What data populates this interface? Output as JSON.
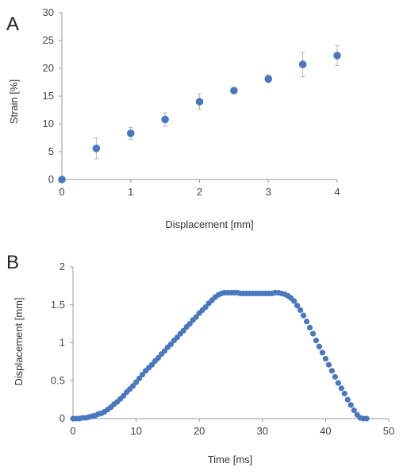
{
  "colors": {
    "marker": "#4a78bf",
    "axis": "#9a9a9a",
    "errorbar": "#b8b8b8",
    "text": "#444444"
  },
  "chart_data": [
    {
      "panel": "A",
      "type": "scatter",
      "xlabel": "Displacement [mm]",
      "ylabel": "Strain [%]",
      "xlim": [
        0,
        4
      ],
      "ylim": [
        0,
        30
      ],
      "xticks": [
        0,
        1,
        2,
        3,
        4
      ],
      "yticks": [
        0,
        5,
        10,
        15,
        20,
        25,
        30
      ],
      "grid": false,
      "legend": "none",
      "points": [
        {
          "x": 0,
          "y": 0,
          "err": 0
        },
        {
          "x": 0.5,
          "y": 5.6,
          "err": 1.9
        },
        {
          "x": 1.0,
          "y": 8.3,
          "err": 1.1
        },
        {
          "x": 1.5,
          "y": 10.8,
          "err": 1.2
        },
        {
          "x": 2.0,
          "y": 14.0,
          "err": 1.4
        },
        {
          "x": 2.5,
          "y": 16.0,
          "err": 0.3
        },
        {
          "x": 3.0,
          "y": 18.1,
          "err": 0.7
        },
        {
          "x": 3.5,
          "y": 20.7,
          "err": 2.2
        },
        {
          "x": 4.0,
          "y": 22.3,
          "err": 1.8
        }
      ]
    },
    {
      "panel": "B",
      "type": "scatter",
      "xlabel": "Time [ms]",
      "ylabel": "Displacement [mm]",
      "xlim": [
        0,
        50
      ],
      "ylim": [
        0,
        2
      ],
      "xticks": [
        0,
        10,
        20,
        30,
        40,
        50
      ],
      "yticks": [
        0,
        0.5,
        1,
        1.5,
        2
      ],
      "grid": false,
      "legend": "none",
      "x": [
        0.0,
        0.5,
        1.0,
        1.5,
        2.0,
        2.5,
        3.0,
        3.5,
        4.0,
        4.5,
        5.0,
        5.5,
        6.0,
        6.5,
        7.0,
        7.5,
        8.0,
        8.5,
        9.0,
        9.5,
        10.0,
        10.5,
        11.0,
        11.5,
        12.0,
        12.5,
        13.0,
        13.5,
        14.0,
        14.5,
        15.0,
        15.5,
        16.0,
        16.5,
        17.0,
        17.5,
        18.0,
        18.5,
        19.0,
        19.5,
        20.0,
        20.5,
        21.0,
        21.5,
        22.0,
        22.5,
        23.0,
        23.5,
        24.0,
        24.5,
        25.0,
        25.5,
        26.0,
        26.5,
        27.0,
        27.5,
        28.0,
        28.5,
        29.0,
        29.5,
        30.0,
        30.5,
        31.0,
        31.5,
        32.0,
        32.5,
        33.0,
        33.5,
        34.0,
        34.5,
        35.0,
        35.5,
        36.0,
        36.5,
        37.0,
        37.5,
        38.0,
        38.5,
        39.0,
        39.5,
        40.0,
        40.5,
        41.0,
        41.5,
        42.0,
        42.5,
        43.0,
        43.5,
        44.0,
        44.5,
        45.0,
        45.5,
        46.0,
        46.5
      ],
      "y": [
        0.0,
        0.0,
        0.0,
        0.01,
        0.01,
        0.02,
        0.03,
        0.04,
        0.06,
        0.07,
        0.09,
        0.12,
        0.15,
        0.19,
        0.22,
        0.26,
        0.3,
        0.35,
        0.39,
        0.43,
        0.48,
        0.53,
        0.58,
        0.63,
        0.67,
        0.71,
        0.76,
        0.8,
        0.85,
        0.89,
        0.94,
        0.98,
        1.03,
        1.07,
        1.12,
        1.16,
        1.21,
        1.25,
        1.3,
        1.34,
        1.39,
        1.43,
        1.47,
        1.52,
        1.56,
        1.6,
        1.63,
        1.65,
        1.66,
        1.66,
        1.66,
        1.66,
        1.66,
        1.65,
        1.65,
        1.65,
        1.65,
        1.65,
        1.65,
        1.65,
        1.65,
        1.65,
        1.65,
        1.65,
        1.66,
        1.66,
        1.65,
        1.64,
        1.62,
        1.59,
        1.55,
        1.49,
        1.43,
        1.36,
        1.28,
        1.2,
        1.12,
        1.03,
        0.95,
        0.87,
        0.79,
        0.71,
        0.63,
        0.55,
        0.47,
        0.4,
        0.33,
        0.25,
        0.18,
        0.11,
        0.05,
        0.01,
        0.0,
        0.0
      ]
    }
  ]
}
